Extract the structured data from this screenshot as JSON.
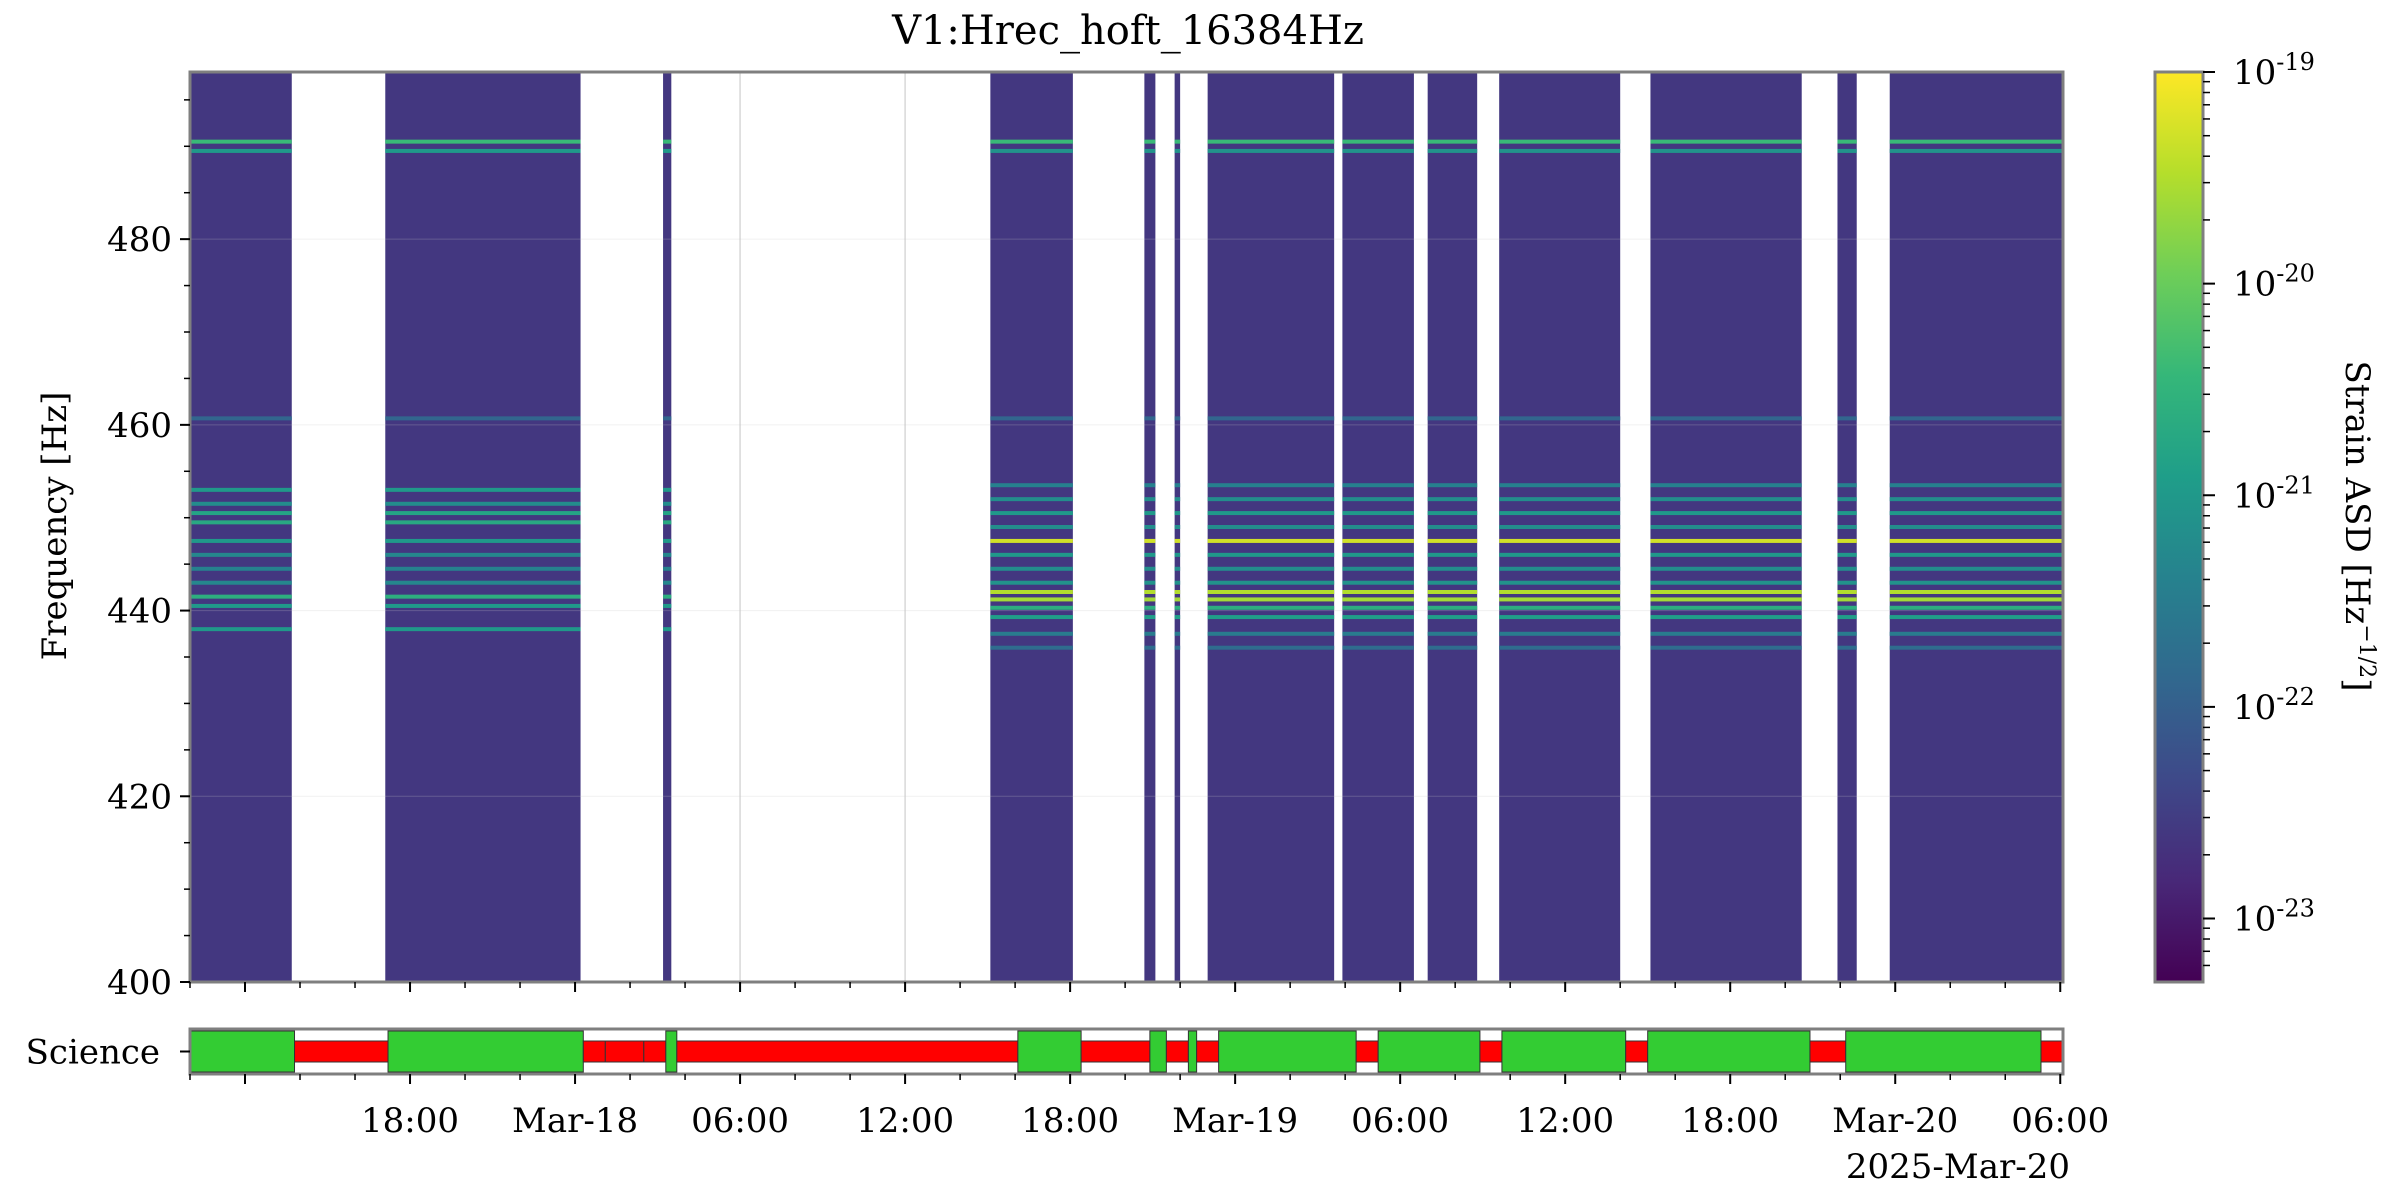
{
  "chart_data": {
    "type": "heatmap",
    "title": "V1:Hrec_hoft_16384Hz",
    "ylabel": "Frequency [Hz]",
    "ylim": [
      400,
      498
    ],
    "yticks": [
      400,
      420,
      440,
      460,
      480
    ],
    "x_tick_labels": [
      "18:00",
      "Mar-18",
      "06:00",
      "12:00",
      "18:00",
      "Mar-19",
      "06:00",
      "12:00",
      "18:00",
      "Mar-20",
      "06:00"
    ],
    "x_epoch_label": "2025-Mar-20",
    "xlim_hours_from_mar17_00": [
      10.0,
      78.1
    ],
    "colorbar": {
      "label": "Strain ASD [Hz⁻¹ᐟ²]",
      "label_text": "Strain ASD [Hz",
      "label_exp": "−1/2",
      "label_close": "]",
      "scale": "log",
      "ticks": [
        {
          "base": "10",
          "exp": "-19"
        },
        {
          "base": "10",
          "exp": "-20"
        },
        {
          "base": "10",
          "exp": "-21"
        },
        {
          "base": "10",
          "exp": "-22"
        },
        {
          "base": "10",
          "exp": "-23"
        }
      ],
      "range_log10": [
        -23.3,
        -19.0
      ],
      "colormap": [
        "#440154",
        "#482878",
        "#3e4989",
        "#31688e",
        "#26828e",
        "#1f9e89",
        "#35b779",
        "#6ece58",
        "#b5de2b",
        "#fde725"
      ]
    },
    "data_segments_hours": [
      [
        10.0,
        13.7
      ],
      [
        17.1,
        24.2
      ],
      [
        27.2,
        27.5
      ],
      [
        39.1,
        42.1
      ],
      [
        44.7,
        45.1
      ],
      [
        45.8,
        46.0
      ],
      [
        47.0,
        51.6
      ],
      [
        51.9,
        54.5
      ],
      [
        55.0,
        56.8
      ],
      [
        57.6,
        62.0
      ],
      [
        63.1,
        68.6
      ],
      [
        69.9,
        70.6
      ],
      [
        71.8,
        78.1
      ]
    ],
    "spectral_lines_early": [
      {
        "freq": 490.5,
        "log10": -20.4
      },
      {
        "freq": 489.5,
        "log10": -21.0
      },
      {
        "freq": 460.7,
        "log10": -21.9
      },
      {
        "freq": 453.0,
        "log10": -21.0
      },
      {
        "freq": 451.5,
        "log10": -21.2
      },
      {
        "freq": 450.5,
        "log10": -20.8
      },
      {
        "freq": 449.5,
        "log10": -20.7
      },
      {
        "freq": 447.5,
        "log10": -21.0
      },
      {
        "freq": 446.0,
        "log10": -21.3
      },
      {
        "freq": 444.5,
        "log10": -21.4
      },
      {
        "freq": 443.0,
        "log10": -21.3
      },
      {
        "freq": 441.5,
        "log10": -20.6
      },
      {
        "freq": 440.5,
        "log10": -21.0
      },
      {
        "freq": 438.0,
        "log10": -21.0
      }
    ],
    "spectral_lines_late": [
      {
        "freq": 490.5,
        "log10": -20.4
      },
      {
        "freq": 489.5,
        "log10": -21.1
      },
      {
        "freq": 460.7,
        "log10": -21.9
      },
      {
        "freq": 453.5,
        "log10": -21.4
      },
      {
        "freq": 452.0,
        "log10": -21.2
      },
      {
        "freq": 450.5,
        "log10": -21.0
      },
      {
        "freq": 449.0,
        "log10": -21.2
      },
      {
        "freq": 447.5,
        "log10": -19.3
      },
      {
        "freq": 446.0,
        "log10": -21.0
      },
      {
        "freq": 444.5,
        "log10": -21.2
      },
      {
        "freq": 443.0,
        "log10": -21.1
      },
      {
        "freq": 442.0,
        "log10": -19.5
      },
      {
        "freq": 441.2,
        "log10": -19.6
      },
      {
        "freq": 440.3,
        "log10": -20.6
      },
      {
        "freq": 439.3,
        "log10": -20.9
      },
      {
        "freq": 437.5,
        "log10": -21.5
      },
      {
        "freq": 436.0,
        "log10": -21.8
      }
    ],
    "background_log10": -22.6,
    "segment_bar": {
      "label": "Science",
      "active_color": "#33cc33",
      "inactive_color": "#ff0000",
      "segments": [
        {
          "start": 10.0,
          "end": 13.8,
          "active": true
        },
        {
          "start": 13.8,
          "end": 17.2,
          "active": false
        },
        {
          "start": 17.2,
          "end": 24.3,
          "active": true
        },
        {
          "start": 24.3,
          "end": 25.1,
          "active": false
        },
        {
          "start": 25.1,
          "end": 26.5,
          "active": false
        },
        {
          "start": 26.5,
          "end": 27.3,
          "active": false
        },
        {
          "start": 27.3,
          "end": 27.7,
          "active": true
        },
        {
          "start": 27.7,
          "end": 40.1,
          "active": false
        },
        {
          "start": 40.1,
          "end": 42.4,
          "active": true
        },
        {
          "start": 42.4,
          "end": 44.9,
          "active": false
        },
        {
          "start": 44.9,
          "end": 45.5,
          "active": true
        },
        {
          "start": 45.5,
          "end": 46.3,
          "active": false
        },
        {
          "start": 46.3,
          "end": 46.6,
          "active": true
        },
        {
          "start": 46.6,
          "end": 47.4,
          "active": false
        },
        {
          "start": 47.4,
          "end": 52.4,
          "active": true
        },
        {
          "start": 52.4,
          "end": 53.2,
          "active": false
        },
        {
          "start": 53.2,
          "end": 56.9,
          "active": true
        },
        {
          "start": 56.9,
          "end": 57.7,
          "active": false
        },
        {
          "start": 57.7,
          "end": 62.2,
          "active": true
        },
        {
          "start": 62.2,
          "end": 63.0,
          "active": false
        },
        {
          "start": 63.0,
          "end": 68.9,
          "active": true
        },
        {
          "start": 68.9,
          "end": 70.2,
          "active": false
        },
        {
          "start": 70.2,
          "end": 77.3,
          "active": true
        },
        {
          "start": 77.3,
          "end": 78.1,
          "active": false
        }
      ]
    }
  }
}
